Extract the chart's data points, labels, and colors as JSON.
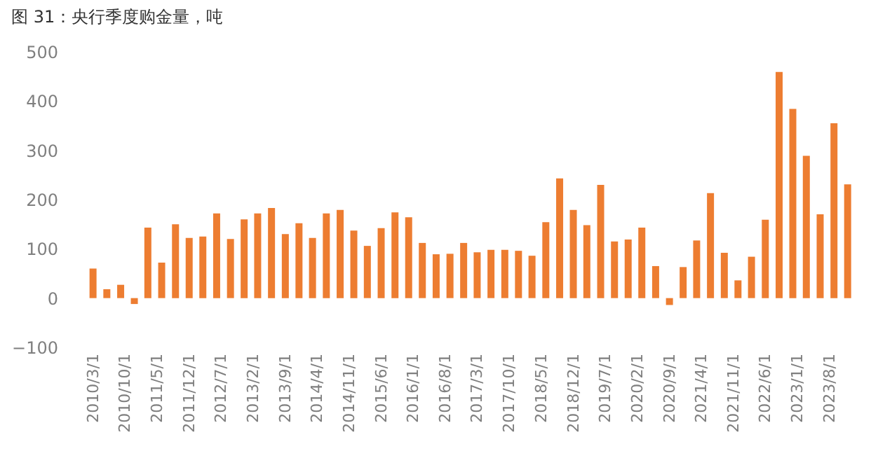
{
  "chart_data": {
    "type": "bar",
    "title": "图 31：央行季度购金量，吨",
    "x": [
      "2010-03",
      "2010-06",
      "2010-09",
      "2010-12",
      "2011-03",
      "2011-06",
      "2011-09",
      "2011-12",
      "2012-03",
      "2012-06",
      "2012-09",
      "2012-12",
      "2013-03",
      "2013-06",
      "2013-09",
      "2013-12",
      "2014-03",
      "2014-06",
      "2014-09",
      "2014-12",
      "2015-03",
      "2015-06",
      "2015-09",
      "2015-12",
      "2016-03",
      "2016-06",
      "2016-09",
      "2016-12",
      "2017-03",
      "2017-06",
      "2017-09",
      "2017-12",
      "2018-03",
      "2018-06",
      "2018-09",
      "2018-12",
      "2019-03",
      "2019-06",
      "2019-09",
      "2019-12",
      "2020-03",
      "2020-06",
      "2020-09",
      "2020-12",
      "2021-03",
      "2021-06",
      "2021-09",
      "2021-12",
      "2022-03",
      "2022-06",
      "2022-09",
      "2022-12",
      "2023-03",
      "2023-06",
      "2023-09",
      "2023-12"
    ],
    "values": [
      60,
      18,
      27,
      -12,
      143,
      72,
      150,
      122,
      125,
      172,
      120,
      160,
      172,
      183,
      130,
      152,
      122,
      172,
      179,
      137,
      106,
      142,
      174,
      164,
      112,
      89,
      90,
      112,
      93,
      98,
      98,
      96,
      86,
      154,
      243,
      179,
      148,
      230,
      115,
      119,
      143,
      65,
      -14,
      63,
      117,
      213,
      92,
      36,
      84,
      159,
      459,
      384,
      289,
      170,
      355,
      231
    ],
    "color": "#ed7d31",
    "ylim": [
      -100,
      500
    ],
    "yticks": [
      -100,
      0,
      100,
      200,
      300,
      400,
      500
    ],
    "xlim": [
      "2010-01",
      "2024-02"
    ],
    "xticks": [
      {
        "value": "2010-03",
        "label": "2010/3/1"
      },
      {
        "value": "2010-10",
        "label": "2010/10/1"
      },
      {
        "value": "2011-05",
        "label": "2011/5/1"
      },
      {
        "value": "2011-12",
        "label": "2011/12/1"
      },
      {
        "value": "2012-07",
        "label": "2012/7/1"
      },
      {
        "value": "2013-02",
        "label": "2013/2/1"
      },
      {
        "value": "2013-09",
        "label": "2013/9/1"
      },
      {
        "value": "2014-04",
        "label": "2014/4/1"
      },
      {
        "value": "2014-11",
        "label": "2014/11/1"
      },
      {
        "value": "2015-06",
        "label": "2015/6/1"
      },
      {
        "value": "2016-01",
        "label": "2016/1/1"
      },
      {
        "value": "2016-08",
        "label": "2016/8/1"
      },
      {
        "value": "2017-03",
        "label": "2017/3/1"
      },
      {
        "value": "2017-10",
        "label": "2017/10/1"
      },
      {
        "value": "2018-05",
        "label": "2018/5/1"
      },
      {
        "value": "2018-12",
        "label": "2018/12/1"
      },
      {
        "value": "2019-07",
        "label": "2019/7/1"
      },
      {
        "value": "2020-02",
        "label": "2020/2/1"
      },
      {
        "value": "2020-09",
        "label": "2020/9/1"
      },
      {
        "value": "2021-04",
        "label": "2021/4/1"
      },
      {
        "value": "2021-11",
        "label": "2021/11/1"
      },
      {
        "value": "2022-06",
        "label": "2022/6/1"
      },
      {
        "value": "2023-01",
        "label": "2023/1/1"
      },
      {
        "value": "2023-08",
        "label": "2023/8/1"
      }
    ],
    "grid": false
  }
}
